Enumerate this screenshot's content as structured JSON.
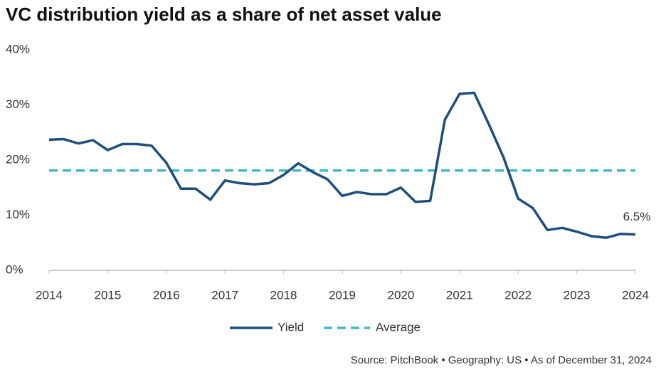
{
  "chart_data": {
    "type": "line",
    "title": "VC distribution yield as a share of net asset value",
    "source": "Source: PitchBook  •  Geography: US  •  As of December 31, 2024",
    "x": [
      2014,
      2014.25,
      2014.5,
      2014.75,
      2015,
      2015.25,
      2015.5,
      2015.75,
      2016,
      2016.25,
      2016.5,
      2016.75,
      2017,
      2017.25,
      2017.5,
      2017.75,
      2018,
      2018.25,
      2018.5,
      2018.75,
      2019,
      2019.25,
      2019.5,
      2019.75,
      2020,
      2020.25,
      2020.5,
      2020.75,
      2021,
      2021.25,
      2021.5,
      2021.75,
      2022,
      2022.25,
      2022.5,
      2022.75,
      2023,
      2023.25,
      2023.5,
      2023.75,
      2024
    ],
    "series": [
      {
        "name": "Yield",
        "color": "#1f4e79",
        "values": [
          23.7,
          23.8,
          23.0,
          23.6,
          21.8,
          22.9,
          22.9,
          22.6,
          19.5,
          14.8,
          14.8,
          12.8,
          16.3,
          15.8,
          15.6,
          15.8,
          17.3,
          19.4,
          17.8,
          16.5,
          13.5,
          14.2,
          13.8,
          13.8,
          15.0,
          12.4,
          12.6,
          27.3,
          32.0,
          32.2,
          26.5,
          20.5,
          13.0,
          11.3,
          7.3,
          7.7,
          7.0,
          6.2,
          5.9,
          6.6,
          6.5
        ],
        "value_labels": {
          "40": "6.5%"
        }
      }
    ],
    "average": {
      "name": "Average",
      "value": 18.1,
      "color": "#45b8c0"
    },
    "xlim": [
      2014,
      2024
    ],
    "xticks": [
      2014,
      2015,
      2016,
      2017,
      2018,
      2019,
      2020,
      2021,
      2022,
      2023,
      2024
    ],
    "ylim": [
      0,
      40
    ],
    "yticks": [
      {
        "value": 0,
        "label": "0%"
      },
      {
        "value": 10,
        "label": "10%"
      },
      {
        "value": 20,
        "label": "20%"
      },
      {
        "value": 30,
        "label": "30%"
      },
      {
        "value": 40,
        "label": "40%"
      }
    ],
    "grid": false,
    "legend": "bottom"
  }
}
